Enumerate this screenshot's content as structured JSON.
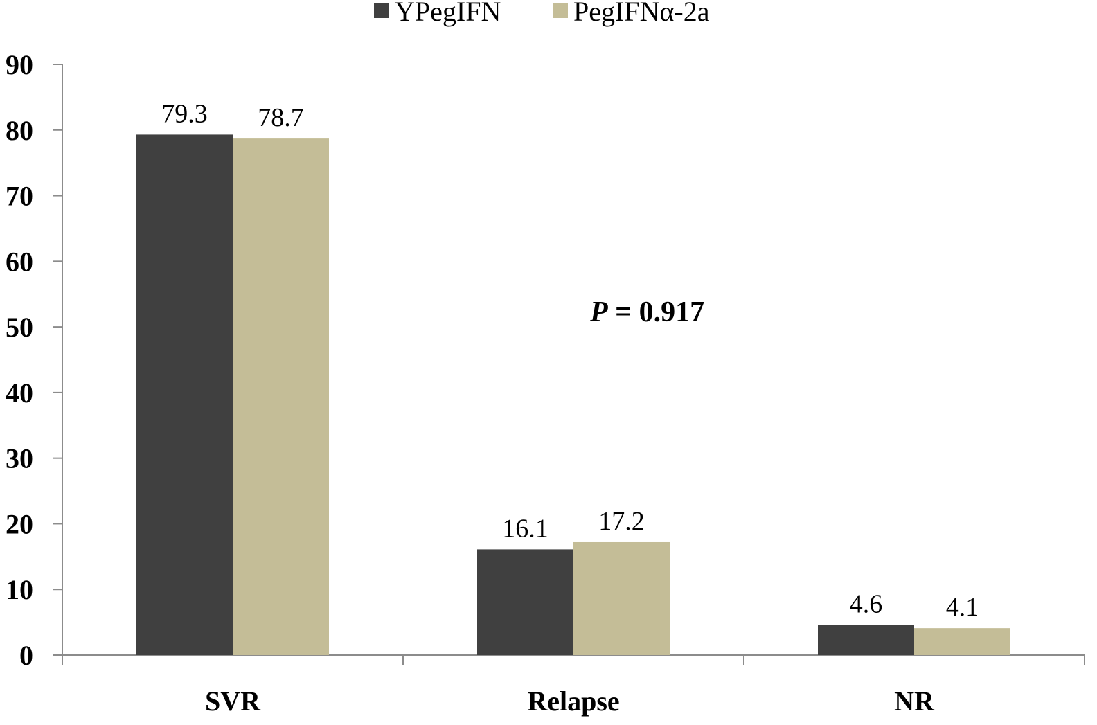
{
  "chart_data": {
    "type": "bar",
    "categories": [
      "SVR",
      "Relapse",
      "NR"
    ],
    "series": [
      {
        "name": "YPegIFN",
        "values": [
          79.3,
          16.1,
          4.6
        ],
        "labels": [
          "79.3",
          "16.1",
          "4.6"
        ],
        "color": "#404040"
      },
      {
        "name": "PegIFNα-2a",
        "values": [
          78.7,
          17.2,
          4.1
        ],
        "labels": [
          "78.7",
          "17.2",
          "4.1"
        ],
        "color": "#c4bd97"
      }
    ],
    "ylim": [
      0,
      90
    ],
    "yticks": [
      "0",
      "10",
      "20",
      "30",
      "40",
      "50",
      "60",
      "70",
      "80",
      "90"
    ],
    "annotation": {
      "italic": "P",
      "rest": " = 0.917"
    },
    "legend": "top-center",
    "grid": false
  }
}
